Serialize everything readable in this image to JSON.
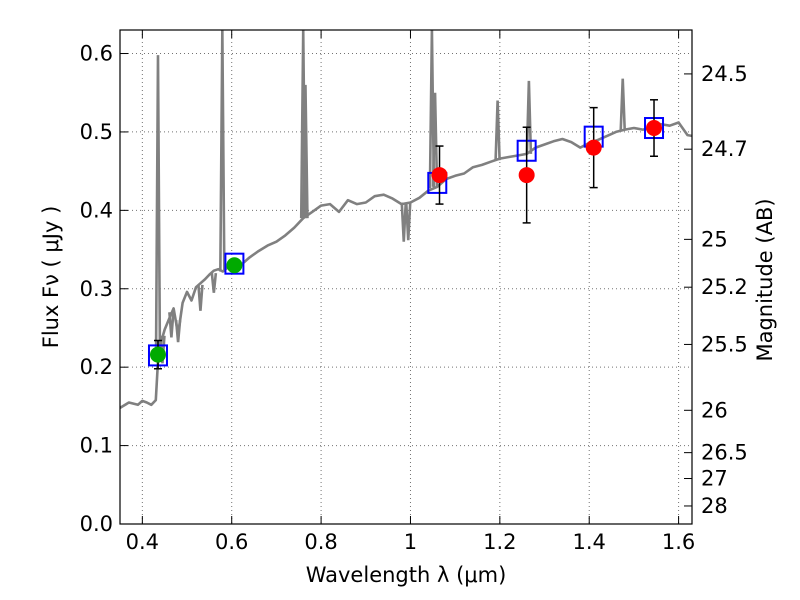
{
  "chart_data": {
    "type": "scatter",
    "xlabel": "Wavelength  λ (μm)",
    "ylabel": "Flux  Fν  ( μJy )",
    "ylabel_right": "Magnitude (AB)",
    "xlim": [
      0.35,
      1.63
    ],
    "ylim": [
      0.0,
      0.63
    ],
    "grid": true,
    "x_ticks": [
      0.4,
      0.6,
      0.8,
      1.0,
      1.2,
      1.4,
      1.6
    ],
    "x_tick_labels": [
      "0.4",
      "0.6",
      "0.8",
      "1",
      "1.2",
      "1.4",
      "1.6"
    ],
    "y_ticks": [
      0.0,
      0.1,
      0.2,
      0.3,
      0.4,
      0.5,
      0.6
    ],
    "y_tick_labels": [
      "0.0",
      "0.1",
      "0.2",
      "0.3",
      "0.4",
      "0.5",
      "0.6"
    ],
    "right_ticks": [
      {
        "label": "24.5",
        "flux": 0.574
      },
      {
        "label": "24.7",
        "flux": 0.478
      },
      {
        "label": "25",
        "flux": 0.363
      },
      {
        "label": "25.2",
        "flux": 0.302
      },
      {
        "label": "25.5",
        "flux": 0.229
      },
      {
        "label": "26",
        "flux": 0.145
      },
      {
        "label": "26.5",
        "flux": 0.091
      },
      {
        "label": "27",
        "flux": 0.058
      },
      {
        "label": "28",
        "flux": 0.023
      }
    ],
    "series": [
      {
        "kind": "spectrum",
        "color": "#808080",
        "x": [
          0.35,
          0.37,
          0.39,
          0.4,
          0.41,
          0.42,
          0.43,
          0.435,
          0.44,
          0.45,
          0.46,
          0.47,
          0.48,
          0.49,
          0.5,
          0.51,
          0.52,
          0.53,
          0.54,
          0.55,
          0.56,
          0.57,
          0.58,
          0.59,
          0.6,
          0.61,
          0.62,
          0.64,
          0.66,
          0.68,
          0.7,
          0.72,
          0.74,
          0.76,
          0.78,
          0.8,
          0.82,
          0.84,
          0.86,
          0.88,
          0.9,
          0.92,
          0.94,
          0.96,
          0.98,
          1.0,
          1.02,
          1.04,
          1.06,
          1.08,
          1.1,
          1.12,
          1.14,
          1.16,
          1.18,
          1.2,
          1.22,
          1.24,
          1.26,
          1.28,
          1.3,
          1.32,
          1.34,
          1.36,
          1.38,
          1.4,
          1.42,
          1.44,
          1.46,
          1.48,
          1.5,
          1.52,
          1.54,
          1.56,
          1.58,
          1.6,
          1.62,
          1.63
        ],
        "y": [
          0.148,
          0.155,
          0.152,
          0.157,
          0.155,
          0.152,
          0.158,
          0.208,
          0.228,
          0.248,
          0.262,
          0.275,
          0.242,
          0.282,
          0.296,
          0.285,
          0.302,
          0.307,
          0.312,
          0.318,
          0.323,
          0.325,
          0.322,
          0.327,
          0.33,
          0.326,
          0.33,
          0.34,
          0.348,
          0.355,
          0.36,
          0.368,
          0.378,
          0.39,
          0.398,
          0.406,
          0.408,
          0.398,
          0.413,
          0.408,
          0.41,
          0.418,
          0.42,
          0.415,
          0.408,
          0.41,
          0.416,
          0.425,
          0.43,
          0.44,
          0.444,
          0.447,
          0.455,
          0.458,
          0.462,
          0.466,
          0.468,
          0.47,
          0.472,
          0.48,
          0.484,
          0.488,
          0.491,
          0.487,
          0.48,
          0.486,
          0.49,
          0.495,
          0.5,
          0.503,
          0.505,
          0.503,
          0.505,
          0.51,
          0.508,
          0.512,
          0.496,
          0.495
        ]
      },
      {
        "kind": "spectrum-emission-lines",
        "color": "#808080",
        "lines": [
          {
            "x": 0.435,
            "base": 0.208,
            "peak": 0.598
          },
          {
            "x": 0.579,
            "base": 0.322,
            "peak": 0.63
          },
          {
            "x": 0.76,
            "base": 0.39,
            "peak": 0.63
          },
          {
            "x": 0.765,
            "base": 0.39,
            "peak": 0.56
          },
          {
            "x": 1.048,
            "base": 0.428,
            "peak": 0.63
          },
          {
            "x": 1.055,
            "base": 0.43,
            "peak": 0.55
          },
          {
            "x": 1.195,
            "base": 0.464,
            "peak": 0.54
          },
          {
            "x": 1.265,
            "base": 0.472,
            "peak": 0.565
          },
          {
            "x": 1.475,
            "base": 0.502,
            "peak": 0.568
          }
        ],
        "absorption": [
          {
            "x": 0.445,
            "base": 0.24,
            "dip": 0.205
          },
          {
            "x": 0.465,
            "base": 0.27,
            "dip": 0.238
          },
          {
            "x": 0.48,
            "base": 0.26,
            "dip": 0.232
          },
          {
            "x": 0.53,
            "base": 0.305,
            "dip": 0.272
          },
          {
            "x": 0.56,
            "base": 0.32,
            "dip": 0.295
          },
          {
            "x": 0.985,
            "base": 0.41,
            "dip": 0.36
          },
          {
            "x": 0.995,
            "base": 0.41,
            "dip": 0.362
          }
        ]
      },
      {
        "kind": "model-photometry",
        "marker": "square",
        "color": "#0000ff",
        "x": [
          0.435,
          0.606,
          1.06,
          1.26,
          1.41,
          1.545
        ],
        "y": [
          0.215,
          0.332,
          0.435,
          0.476,
          0.494,
          0.505
        ]
      },
      {
        "kind": "observed-photometry",
        "marker": "circle",
        "points": [
          {
            "x": 0.435,
            "y": 0.216,
            "err": 0.018,
            "color": "#00aa00"
          },
          {
            "x": 0.606,
            "y": 0.33,
            "err": 0.0,
            "color": "#00aa00"
          },
          {
            "x": 1.065,
            "y": 0.445,
            "err": 0.037,
            "color": "#ff0000"
          },
          {
            "x": 1.26,
            "y": 0.445,
            "err": 0.061,
            "color": "#ff0000"
          },
          {
            "x": 1.41,
            "y": 0.48,
            "err": 0.051,
            "color": "#ff0000"
          },
          {
            "x": 1.545,
            "y": 0.505,
            "err": 0.036,
            "color": "#ff0000"
          }
        ]
      }
    ]
  }
}
